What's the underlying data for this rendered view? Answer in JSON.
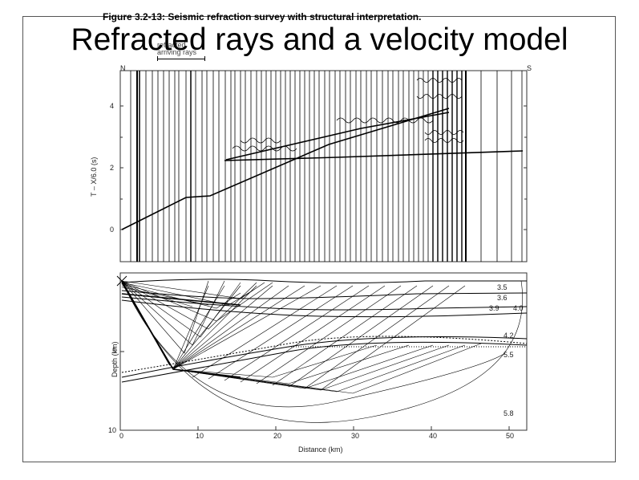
{
  "figure": {
    "caption": "Figure 3.2-13: Seismic refraction survey with structural interpretation.",
    "title": "Refracted rays and a velocity model",
    "legend_text": [
      "refracted ",
      "arriving rays"
    ],
    "top_panel": {
      "end_left": "N",
      "end_right": "S",
      "ylabel": "T – X/6.0 (s)",
      "yticks": [
        "4",
        "2",
        "0"
      ]
    },
    "bottom_panel": {
      "ylabel": "Depth (km)",
      "yticks": [
        "5",
        "10"
      ],
      "xlabel": "Distance (km)",
      "xticks": [
        "0",
        "10",
        "20",
        "30",
        "40",
        "50"
      ],
      "velocities": [
        "3.5",
        "3.6",
        "3.9",
        "4.0",
        "4.2",
        "5.5",
        "5.8"
      ]
    }
  }
}
